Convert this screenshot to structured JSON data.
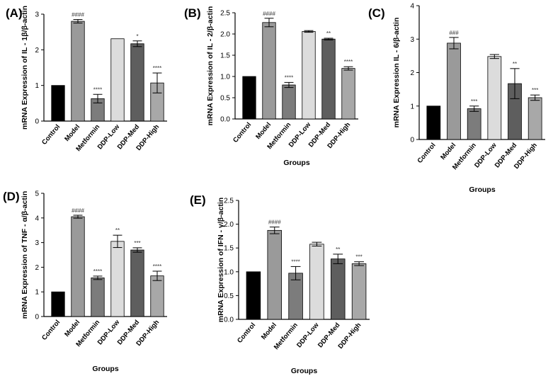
{
  "chart_data": [
    {
      "panel": "(A)",
      "type": "bar",
      "categories": [
        "Control",
        "Model",
        "Metformin",
        "DDP-Low",
        "DDP-Med",
        "DDP-High"
      ],
      "values": [
        1.0,
        2.8,
        0.63,
        2.31,
        2.17,
        1.07
      ],
      "errors": [
        0,
        0.05,
        0.12,
        0,
        0.08,
        0.28
      ],
      "significance": [
        "",
        "####",
        "****",
        "",
        "*",
        "****"
      ],
      "colors": [
        "#000000",
        "#9a9a9a",
        "#7c7c7c",
        "#dcdcdc",
        "#5e5e5e",
        "#a8a8a8"
      ],
      "ylabel": "mRNA Expression of IL - 1β/β-actin",
      "xlabel": "",
      "ylim": [
        0,
        3
      ],
      "yticks": [
        "0",
        "1",
        "2",
        "3"
      ]
    },
    {
      "panel": "(B)",
      "type": "bar",
      "categories": [
        "Control",
        "Model",
        "Metformin",
        "DDP-Low",
        "DDP-Med",
        "DDP-High"
      ],
      "values": [
        1.0,
        2.27,
        0.8,
        2.06,
        1.88,
        1.19
      ],
      "errors": [
        0,
        0.1,
        0.06,
        0.02,
        0.02,
        0.04
      ],
      "significance": [
        "",
        "####",
        "****",
        "",
        "**",
        "****"
      ],
      "colors": [
        "#000000",
        "#9a9a9a",
        "#7c7c7c",
        "#dcdcdc",
        "#5e5e5e",
        "#a8a8a8"
      ],
      "ylabel": "mRNA Expression of IL - 2/β-actin",
      "xlabel": "Groups",
      "ylim": [
        0,
        2.5
      ],
      "yticks": [
        "0.0",
        "0.5",
        "1.0",
        "1.5",
        "2.0",
        "2.5"
      ]
    },
    {
      "panel": "(C)",
      "type": "bar",
      "categories": [
        "Control",
        "Model",
        "Metformin",
        "DDP-Low",
        "DDP-Med",
        "DDP-High"
      ],
      "values": [
        1.0,
        2.88,
        0.92,
        2.48,
        1.67,
        1.25
      ],
      "errors": [
        0,
        0.17,
        0.08,
        0.06,
        0.45,
        0.08
      ],
      "significance": [
        "",
        "###",
        "***",
        "",
        "**",
        "***"
      ],
      "colors": [
        "#000000",
        "#9a9a9a",
        "#7c7c7c",
        "#dcdcdc",
        "#5e5e5e",
        "#a8a8a8"
      ],
      "ylabel": "mRNA Expression IL - 6/β-actin",
      "xlabel": "Groups",
      "ylim": [
        0,
        4
      ],
      "yticks": [
        "0",
        "1",
        "2",
        "3",
        "4"
      ]
    },
    {
      "panel": "(D)",
      "type": "bar",
      "categories": [
        "Control",
        "Model",
        "Metformin",
        "DDP-Low",
        "DDP-Med",
        "DDP-High"
      ],
      "values": [
        1.0,
        4.05,
        1.57,
        3.05,
        2.7,
        1.65
      ],
      "errors": [
        0,
        0.06,
        0.07,
        0.25,
        0.09,
        0.19
      ],
      "significance": [
        "",
        "####",
        "****",
        "**",
        "***",
        "****"
      ],
      "colors": [
        "#000000",
        "#9a9a9a",
        "#7c7c7c",
        "#dcdcdc",
        "#5e5e5e",
        "#a8a8a8"
      ],
      "ylabel": "mRNA Expression of TNF - α/β-actin",
      "xlabel": "Groups",
      "ylim": [
        0,
        5
      ],
      "yticks": [
        "0",
        "1",
        "2",
        "3",
        "4",
        "5"
      ]
    },
    {
      "panel": "(E)",
      "type": "bar",
      "categories": [
        "Control",
        "Model",
        "Metformin",
        "DDP-Low",
        "DDP-Med",
        "DDP-High"
      ],
      "values": [
        1.0,
        1.87,
        0.97,
        1.58,
        1.27,
        1.17
      ],
      "errors": [
        0,
        0.07,
        0.14,
        0.04,
        0.1,
        0.04
      ],
      "significance": [
        "",
        "####",
        "****",
        "",
        "**",
        "***"
      ],
      "colors": [
        "#000000",
        "#9a9a9a",
        "#7c7c7c",
        "#dcdcdc",
        "#5e5e5e",
        "#a8a8a8"
      ],
      "ylabel": "mRNA Expression of IFN - γ/β-actin",
      "xlabel": "Groups",
      "ylim": [
        0,
        2.5
      ],
      "yticks": [
        "0.0",
        "0.5",
        "1.0",
        "1.5",
        "2.0",
        "2.5"
      ]
    }
  ]
}
